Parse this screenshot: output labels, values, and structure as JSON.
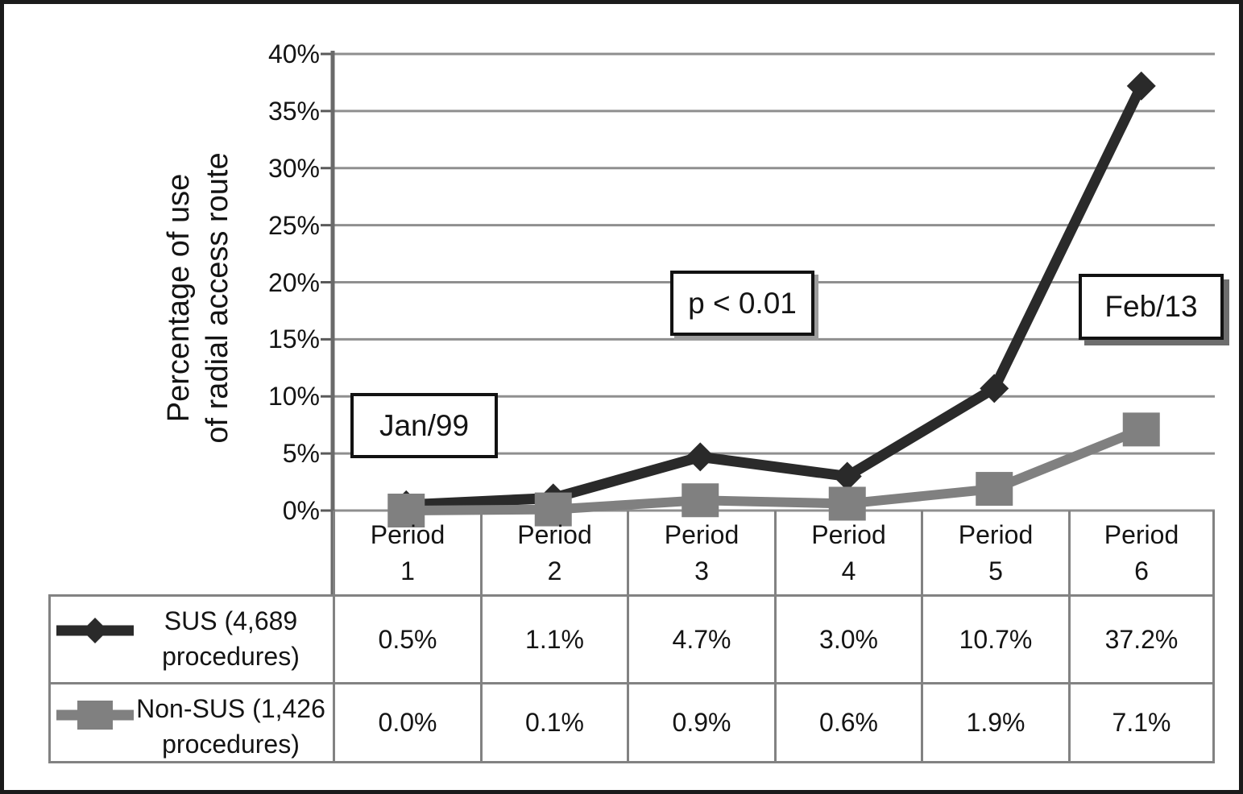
{
  "figure": {
    "background": "#ffffff",
    "border_color": "#1b1b1b"
  },
  "chart_data": {
    "type": "line",
    "title": "",
    "xlabel": "",
    "ylabel": "Percentage of use\nof radial access route",
    "ylim": [
      0,
      40
    ],
    "grid": true,
    "legend_position": "table-left",
    "y_ticks": [
      "0%",
      "5%",
      "10%",
      "15%",
      "20%",
      "25%",
      "30%",
      "35%",
      "40%"
    ],
    "categories": [
      "Period\n1",
      "Period\n2",
      "Period\n3",
      "Period\n4",
      "Period\n5",
      "Period\n6"
    ],
    "series": [
      {
        "name": "SUS (4,689\nprocedures)",
        "marker": "diamond",
        "color": "#2a2a2a",
        "values": [
          0.5,
          1.1,
          4.7,
          3.0,
          10.7,
          37.2
        ],
        "value_labels": [
          "0.5%",
          "1.1%",
          "4.7%",
          "3.0%",
          "10.7%",
          "37.2%"
        ]
      },
      {
        "name": "Non-SUS (1,426\nprocedures)",
        "marker": "square",
        "color": "#808080",
        "values": [
          0.0,
          0.1,
          0.9,
          0.6,
          1.9,
          7.1
        ],
        "value_labels": [
          "0.0%",
          "0.1%",
          "0.9%",
          "0.6%",
          "1.9%",
          "7.1%"
        ]
      }
    ],
    "annotations": [
      {
        "id": "start-date",
        "text": "Jan/99"
      },
      {
        "id": "p-value",
        "text": "p < 0.01"
      },
      {
        "id": "end-date",
        "text": "Feb/13"
      }
    ],
    "colors": {
      "gridline": "#8f8f8f",
      "tick": "#5a5a5a",
      "axis": "#6a6a6a",
      "table_border": "#828282",
      "text": "#141414"
    }
  }
}
